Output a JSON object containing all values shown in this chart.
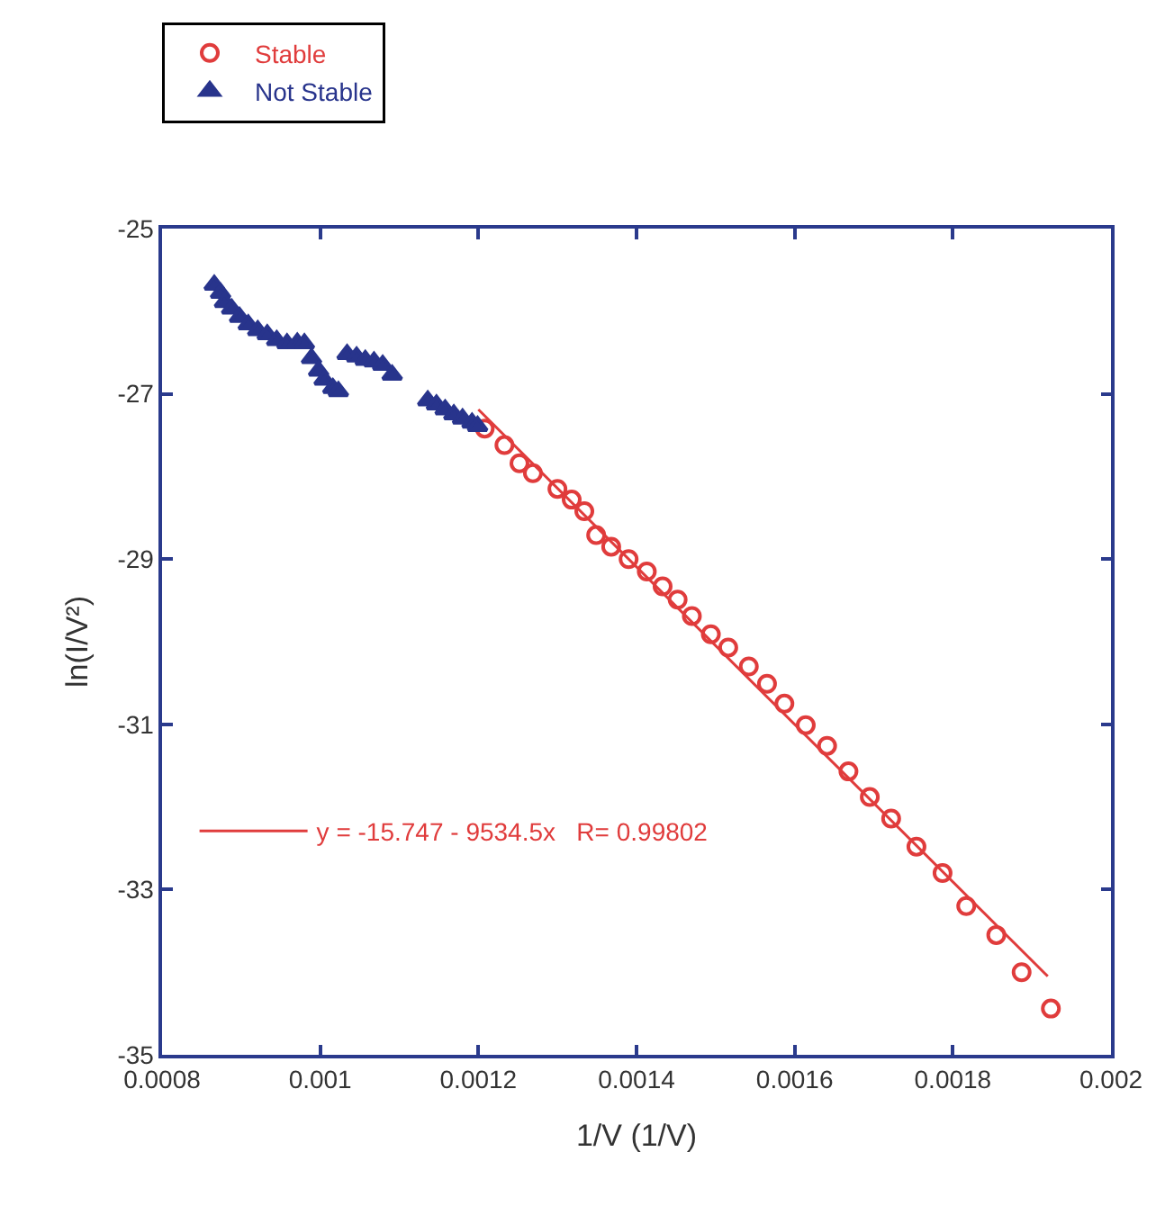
{
  "chart_data": {
    "type": "scatter",
    "xlabel": "1/V (1/V)",
    "ylabel": "ln(I/V²)",
    "xlim": [
      0.0008,
      0.002
    ],
    "ylim": [
      -35,
      -25
    ],
    "xticks": [
      0.0008,
      0.001,
      0.0012,
      0.0014,
      0.0016,
      0.0018,
      0.002
    ],
    "yticks": [
      -35,
      -33,
      -31,
      -29,
      -27,
      -25
    ],
    "grid": false,
    "legend": "top left",
    "series": [
      {
        "name": "Stable",
        "marker": "circle",
        "color": "#e03c3c",
        "x": [
          0.001208,
          0.001233,
          0.001252,
          0.001269,
          0.0013,
          0.001318,
          0.001334,
          0.001349,
          0.001368,
          0.00139,
          0.001413,
          0.001433,
          0.001452,
          0.00147,
          0.001494,
          0.001516,
          0.001542,
          0.001565,
          0.001587,
          0.001614,
          0.001641,
          0.001668,
          0.001695,
          0.001722,
          0.001754,
          0.001787,
          0.001817,
          0.001855,
          0.001887,
          0.001924
        ],
        "values": [
          -27.42,
          -27.62,
          -27.84,
          -27.96,
          -28.15,
          -28.28,
          -28.42,
          -28.71,
          -28.85,
          -29.0,
          -29.15,
          -29.33,
          -29.49,
          -29.69,
          -29.91,
          -30.07,
          -30.3,
          -30.51,
          -30.75,
          -31.01,
          -31.26,
          -31.57,
          -31.88,
          -32.14,
          -32.48,
          -32.8,
          -33.2,
          -33.55,
          -34.0,
          -34.44
        ]
      },
      {
        "name": "Not Stable",
        "marker": "triangle",
        "color": "#28348c",
        "x": [
          0.000866,
          0.000874,
          0.000879,
          0.000888,
          0.000898,
          0.000909,
          0.000921,
          0.000933,
          0.000945,
          0.000958,
          0.000971,
          0.00098,
          0.000989,
          0.000998,
          0.001005,
          0.001016,
          0.001023,
          0.001034,
          0.001046,
          0.001057,
          0.001068,
          0.001079,
          0.001091,
          0.001136,
          0.001147,
          0.001158,
          0.001169,
          0.00118,
          0.001192,
          0.001199
        ],
        "values": [
          -25.68,
          -25.78,
          -25.89,
          -25.97,
          -26.07,
          -26.16,
          -26.23,
          -26.28,
          -26.35,
          -26.39,
          -26.38,
          -26.39,
          -26.57,
          -26.72,
          -26.83,
          -26.93,
          -26.97,
          -26.52,
          -26.55,
          -26.59,
          -26.61,
          -26.65,
          -26.77,
          -27.08,
          -27.13,
          -27.19,
          -27.25,
          -27.3,
          -27.35,
          -27.39
        ]
      },
      {
        "name": "y = -15.747 - 9534.5x   R= 0.99802",
        "type": "line",
        "marker": "none",
        "line_style": "solid",
        "color": "#e03c3c",
        "x": [
          0.0012,
          0.00192
        ],
        "values": [
          -27.19,
          -34.05
        ]
      }
    ]
  }
}
